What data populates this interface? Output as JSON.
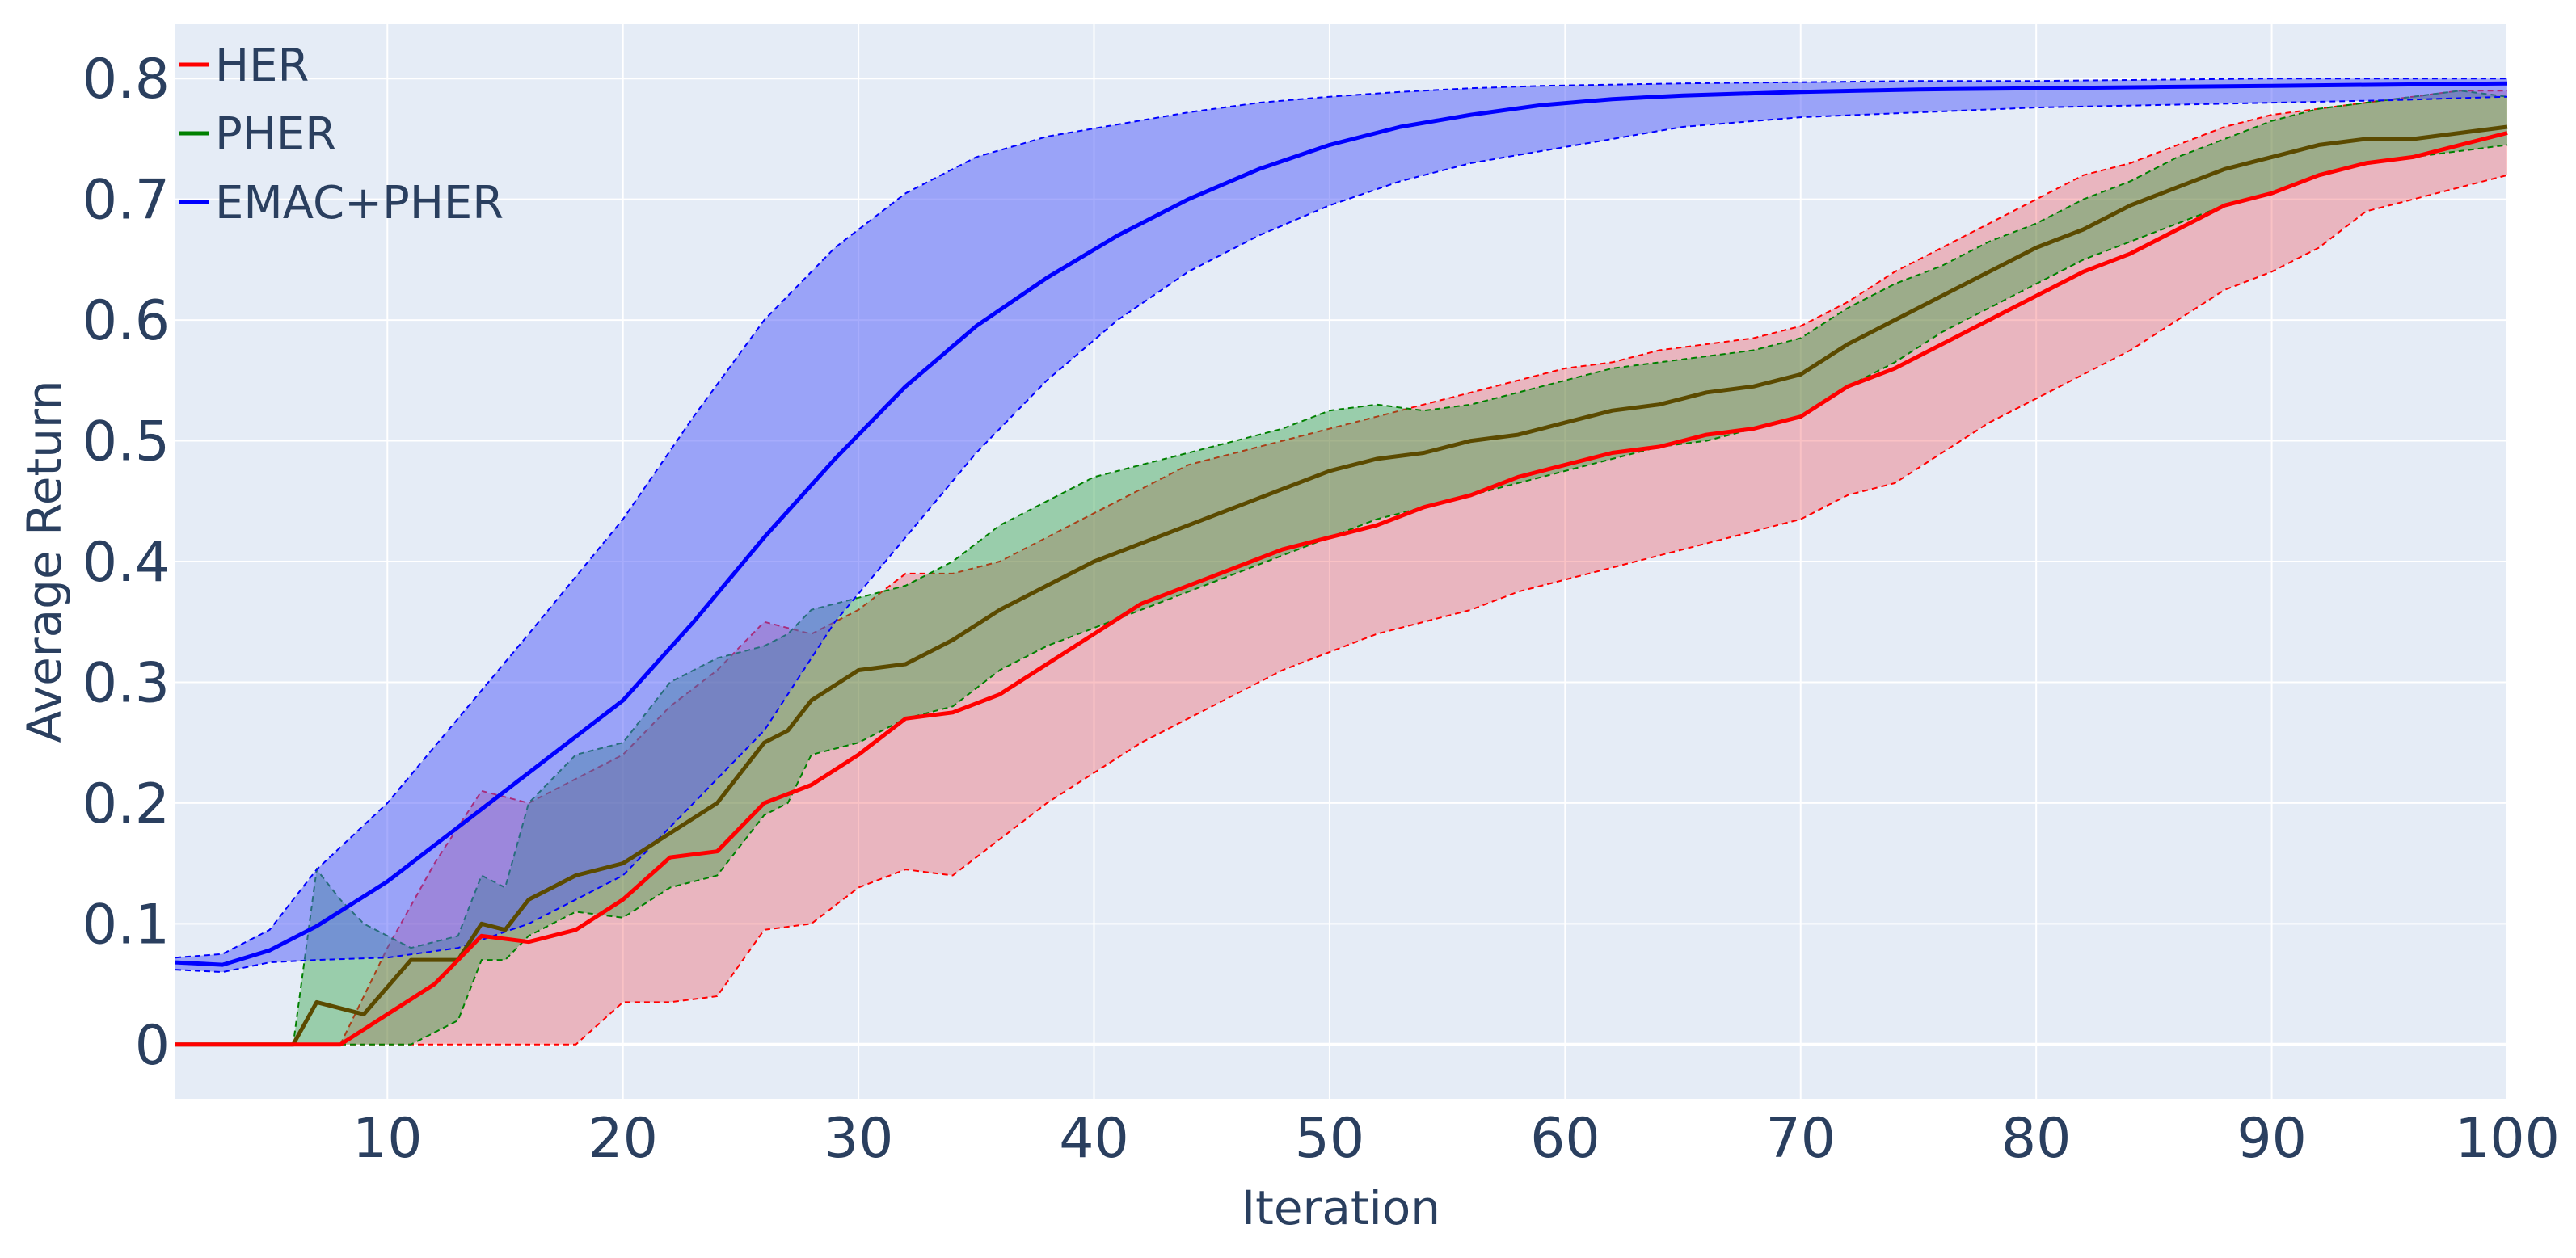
{
  "chart_data": {
    "type": "line",
    "title": "",
    "xlabel": "Iteration",
    "ylabel": "Average Return",
    "xlim": [
      1,
      100
    ],
    "ylim": [
      -0.045,
      0.845
    ],
    "xticks": [
      10,
      20,
      30,
      40,
      50,
      60,
      70,
      80,
      90,
      100
    ],
    "yticks": [
      0,
      0.1,
      0.2,
      0.3,
      0.4,
      0.5,
      0.6,
      0.7,
      0.8
    ],
    "ytick_labels": [
      "0",
      "0.1",
      "0.2",
      "0.3",
      "0.4",
      "0.5",
      "0.6",
      "0.7",
      "0.8"
    ],
    "grid": true,
    "legend_position": "top-left",
    "background_color": "#e5ecf6",
    "series": [
      {
        "name": "HER",
        "color": "#ff0000",
        "band_color": "rgba(240,80,90,0.35)",
        "x": [
          1,
          5,
          8,
          10,
          12,
          14,
          16,
          18,
          20,
          22,
          24,
          26,
          28,
          30,
          32,
          34,
          36,
          38,
          40,
          42,
          44,
          46,
          48,
          50,
          52,
          54,
          56,
          58,
          60,
          62,
          64,
          66,
          68,
          70,
          72,
          74,
          76,
          78,
          80,
          82,
          84,
          86,
          88,
          90,
          92,
          94,
          96,
          98,
          100
        ],
        "mean": [
          0,
          0,
          0,
          0.025,
          0.05,
          0.09,
          0.085,
          0.095,
          0.12,
          0.155,
          0.16,
          0.2,
          0.215,
          0.24,
          0.27,
          0.275,
          0.29,
          0.315,
          0.34,
          0.365,
          0.38,
          0.395,
          0.41,
          0.42,
          0.43,
          0.445,
          0.455,
          0.47,
          0.48,
          0.49,
          0.495,
          0.505,
          0.51,
          0.52,
          0.545,
          0.56,
          0.58,
          0.6,
          0.62,
          0.64,
          0.655,
          0.675,
          0.695,
          0.705,
          0.72,
          0.73,
          0.735,
          0.745,
          0.755
        ],
        "upper": [
          0,
          0,
          0,
          0.08,
          0.15,
          0.21,
          0.2,
          0.22,
          0.24,
          0.28,
          0.31,
          0.35,
          0.34,
          0.36,
          0.39,
          0.39,
          0.4,
          0.42,
          0.44,
          0.46,
          0.48,
          0.49,
          0.5,
          0.51,
          0.52,
          0.53,
          0.54,
          0.55,
          0.56,
          0.565,
          0.575,
          0.58,
          0.585,
          0.595,
          0.615,
          0.64,
          0.66,
          0.68,
          0.7,
          0.72,
          0.73,
          0.745,
          0.76,
          0.77,
          0.775,
          0.78,
          0.785,
          0.79,
          0.79
        ],
        "lower": [
          0,
          0,
          0,
          0,
          0,
          0,
          0,
          0,
          0.035,
          0.035,
          0.04,
          0.095,
          0.1,
          0.13,
          0.145,
          0.14,
          0.17,
          0.2,
          0.225,
          0.25,
          0.27,
          0.29,
          0.31,
          0.325,
          0.34,
          0.35,
          0.36,
          0.375,
          0.385,
          0.395,
          0.405,
          0.415,
          0.425,
          0.435,
          0.455,
          0.465,
          0.49,
          0.515,
          0.535,
          0.555,
          0.575,
          0.6,
          0.625,
          0.64,
          0.66,
          0.69,
          0.7,
          0.71,
          0.72
        ]
      },
      {
        "name": "PHER",
        "color": "#008000",
        "band_color": "rgba(40,160,60,0.4)",
        "x": [
          1,
          5,
          6,
          7,
          8,
          9,
          11,
          13,
          14,
          15,
          16,
          17,
          18,
          20,
          22,
          24,
          26,
          27,
          28,
          30,
          32,
          34,
          36,
          38,
          40,
          42,
          44,
          46,
          48,
          50,
          52,
          54,
          56,
          58,
          60,
          62,
          64,
          66,
          68,
          70,
          72,
          74,
          76,
          78,
          80,
          82,
          84,
          86,
          88,
          90,
          92,
          94,
          96,
          98,
          100
        ],
        "mean": [
          0,
          0,
          0,
          0.035,
          0.03,
          0.025,
          0.07,
          0.07,
          0.1,
          0.095,
          0.12,
          0.13,
          0.14,
          0.15,
          0.175,
          0.2,
          0.25,
          0.26,
          0.285,
          0.31,
          0.315,
          0.335,
          0.36,
          0.38,
          0.4,
          0.415,
          0.43,
          0.445,
          0.46,
          0.475,
          0.485,
          0.49,
          0.5,
          0.505,
          0.515,
          0.525,
          0.53,
          0.54,
          0.545,
          0.555,
          0.58,
          0.6,
          0.62,
          0.64,
          0.66,
          0.675,
          0.695,
          0.71,
          0.725,
          0.735,
          0.745,
          0.75,
          0.75,
          0.755,
          0.76
        ],
        "upper": [
          0,
          0,
          0,
          0.145,
          0.12,
          0.1,
          0.08,
          0.09,
          0.14,
          0.13,
          0.2,
          0.22,
          0.24,
          0.25,
          0.3,
          0.32,
          0.33,
          0.34,
          0.36,
          0.37,
          0.38,
          0.4,
          0.43,
          0.45,
          0.47,
          0.48,
          0.49,
          0.5,
          0.51,
          0.525,
          0.53,
          0.525,
          0.53,
          0.54,
          0.55,
          0.56,
          0.565,
          0.57,
          0.575,
          0.585,
          0.61,
          0.63,
          0.645,
          0.665,
          0.68,
          0.7,
          0.715,
          0.735,
          0.75,
          0.765,
          0.775,
          0.78,
          0.785,
          0.79,
          0.785
        ],
        "lower": [
          0,
          0,
          0,
          0,
          0,
          0,
          0,
          0.02,
          0.07,
          0.07,
          0.09,
          0.1,
          0.11,
          0.105,
          0.13,
          0.14,
          0.19,
          0.2,
          0.24,
          0.25,
          0.27,
          0.28,
          0.31,
          0.33,
          0.345,
          0.36,
          0.375,
          0.39,
          0.405,
          0.42,
          0.435,
          0.445,
          0.455,
          0.465,
          0.475,
          0.485,
          0.495,
          0.5,
          0.51,
          0.52,
          0.545,
          0.565,
          0.59,
          0.61,
          0.63,
          0.65,
          0.665,
          0.68,
          0.695,
          0.705,
          0.72,
          0.73,
          0.735,
          0.74,
          0.745
        ]
      },
      {
        "name": "EMAC+PHER",
        "color": "#0000ff",
        "band_color": "rgba(80,90,250,0.5)",
        "x": [
          1,
          3,
          5,
          7,
          10,
          13,
          16,
          20,
          23,
          26,
          29,
          32,
          35,
          38,
          41,
          44,
          47,
          50,
          53,
          56,
          59,
          62,
          65,
          70,
          75,
          80,
          85,
          90,
          95,
          100
        ],
        "mean": [
          0.068,
          0.066,
          0.078,
          0.098,
          0.135,
          0.18,
          0.225,
          0.285,
          0.35,
          0.42,
          0.485,
          0.545,
          0.595,
          0.635,
          0.67,
          0.7,
          0.725,
          0.745,
          0.76,
          0.77,
          0.778,
          0.783,
          0.786,
          0.789,
          0.791,
          0.792,
          0.793,
          0.794,
          0.795,
          0.796
        ],
        "upper": [
          0.072,
          0.075,
          0.095,
          0.145,
          0.2,
          0.27,
          0.34,
          0.435,
          0.52,
          0.6,
          0.66,
          0.705,
          0.735,
          0.752,
          0.762,
          0.772,
          0.78,
          0.785,
          0.789,
          0.792,
          0.794,
          0.795,
          0.796,
          0.797,
          0.798,
          0.798,
          0.799,
          0.8,
          0.8,
          0.8
        ],
        "lower": [
          0.062,
          0.06,
          0.068,
          0.07,
          0.072,
          0.08,
          0.1,
          0.14,
          0.2,
          0.26,
          0.35,
          0.42,
          0.49,
          0.55,
          0.6,
          0.64,
          0.67,
          0.695,
          0.715,
          0.73,
          0.74,
          0.75,
          0.76,
          0.768,
          0.772,
          0.776,
          0.778,
          0.78,
          0.782,
          0.785
        ]
      }
    ]
  }
}
